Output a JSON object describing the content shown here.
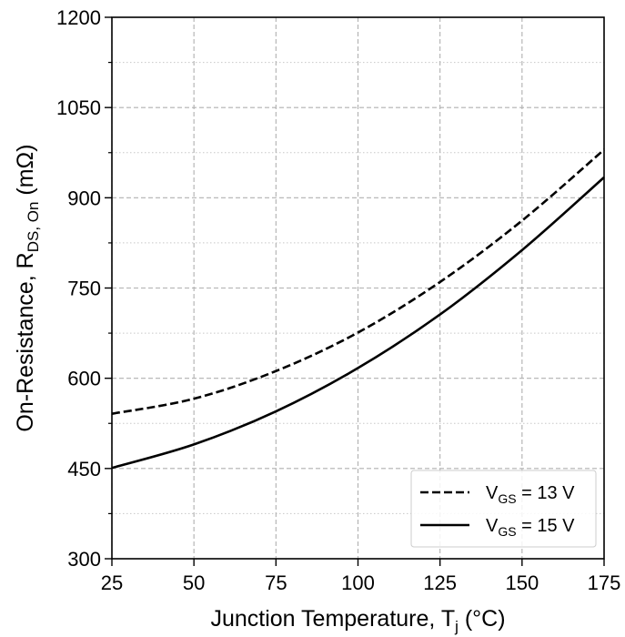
{
  "chart_data": {
    "type": "line",
    "xlabel": {
      "main": "Junction Temperature, T",
      "sub": "j",
      "unit": " (°C)"
    },
    "ylabel": {
      "main": "On-Resistance, R",
      "sub": "DS, On",
      "unit": " (mΩ)"
    },
    "xlim": [
      25,
      175
    ],
    "ylim": [
      300,
      1200
    ],
    "xticks": [
      25,
      50,
      75,
      100,
      125,
      150,
      175
    ],
    "yticks": [
      300,
      450,
      600,
      750,
      900,
      1050,
      1200
    ],
    "x_minor_step": 25,
    "y_minor_step": 75,
    "grid": true,
    "legend_position": "lower-right",
    "series": [
      {
        "name": {
          "prefix": "V",
          "sub": "GS",
          "suffix": " = 13 V"
        },
        "style": "dashed",
        "color": "#000000",
        "x": [
          25,
          50,
          75,
          100,
          125,
          150,
          175
        ],
        "y": [
          541,
          566,
          612,
          676,
          760,
          862,
          980
        ]
      },
      {
        "name": {
          "prefix": "V",
          "sub": "GS",
          "suffix": " = 15 V"
        },
        "style": "solid",
        "color": "#000000",
        "x": [
          25,
          50,
          75,
          100,
          125,
          150,
          175
        ],
        "y": [
          451,
          490,
          545,
          617,
          706,
          813,
          934
        ]
      }
    ]
  }
}
